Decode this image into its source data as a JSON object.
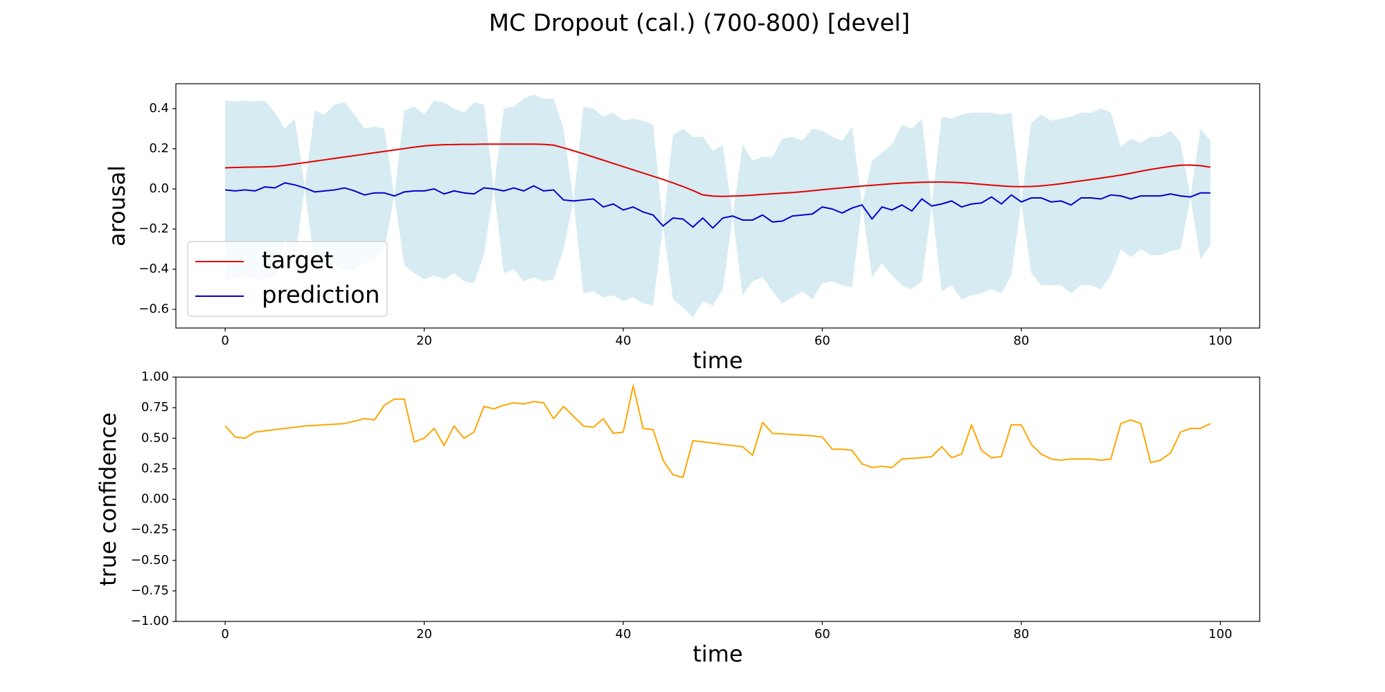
{
  "title": "MC Dropout (cal.) (700-800) [devel]",
  "chart_data": [
    {
      "type": "line",
      "xlabel": "time",
      "ylabel": "arousal",
      "x": [
        0,
        1,
        2,
        3,
        4,
        5,
        6,
        7,
        8,
        9,
        10,
        11,
        12,
        13,
        14,
        15,
        16,
        17,
        18,
        19,
        20,
        21,
        22,
        23,
        24,
        25,
        26,
        27,
        28,
        29,
        30,
        31,
        32,
        33,
        34,
        35,
        36,
        37,
        38,
        39,
        40,
        41,
        42,
        43,
        44,
        45,
        46,
        47,
        48,
        49,
        50,
        51,
        52,
        53,
        54,
        55,
        56,
        57,
        58,
        59,
        60,
        61,
        62,
        63,
        64,
        65,
        66,
        67,
        68,
        69,
        70,
        71,
        72,
        73,
        74,
        75,
        76,
        77,
        78,
        79,
        80,
        81,
        82,
        83,
        84,
        85,
        86,
        87,
        88,
        89,
        90,
        91,
        92,
        93,
        94,
        95,
        96,
        97,
        98,
        99
      ],
      "series": [
        {
          "name": "target",
          "color": "#e00000",
          "values": [
            0.105,
            0.107,
            0.108,
            0.109,
            0.11,
            0.112,
            0.117,
            0.124,
            0.131,
            0.138,
            0.145,
            0.152,
            0.159,
            0.166,
            0.173,
            0.18,
            0.187,
            0.194,
            0.201,
            0.208,
            0.214,
            0.218,
            0.22,
            0.221,
            0.222,
            0.222,
            0.223,
            0.223,
            0.223,
            0.223,
            0.223,
            0.223,
            0.222,
            0.218,
            0.205,
            0.19,
            0.175,
            0.159,
            0.143,
            0.127,
            0.111,
            0.095,
            0.079,
            0.063,
            0.047,
            0.03,
            0.012,
            -0.008,
            -0.03,
            -0.036,
            -0.037,
            -0.036,
            -0.034,
            -0.031,
            -0.027,
            -0.024,
            -0.021,
            -0.018,
            -0.014,
            -0.009,
            -0.004,
            0.001,
            0.005,
            0.01,
            0.014,
            0.018,
            0.022,
            0.026,
            0.029,
            0.031,
            0.033,
            0.034,
            0.034,
            0.033,
            0.031,
            0.027,
            0.023,
            0.019,
            0.015,
            0.012,
            0.011,
            0.012,
            0.015,
            0.02,
            0.026,
            0.033,
            0.04,
            0.047,
            0.054,
            0.061,
            0.069,
            0.078,
            0.088,
            0.097,
            0.105,
            0.112,
            0.118,
            0.119,
            0.116,
            0.108
          ]
        },
        {
          "name": "prediction",
          "color": "#0000cc",
          "values": [
            -0.005,
            -0.01,
            -0.005,
            -0.01,
            0.01,
            0.005,
            0.03,
            0.02,
            0.005,
            -0.015,
            -0.01,
            -0.005,
            0.005,
            -0.01,
            -0.03,
            -0.02,
            -0.02,
            -0.035,
            -0.015,
            -0.01,
            -0.01,
            0.0,
            -0.025,
            -0.01,
            -0.02,
            -0.025,
            0.005,
            0.0,
            -0.01,
            0.005,
            -0.01,
            0.015,
            -0.01,
            -0.005,
            -0.055,
            -0.06,
            -0.055,
            -0.05,
            -0.09,
            -0.075,
            -0.105,
            -0.09,
            -0.115,
            -0.13,
            -0.185,
            -0.145,
            -0.15,
            -0.19,
            -0.145,
            -0.195,
            -0.145,
            -0.135,
            -0.155,
            -0.155,
            -0.13,
            -0.165,
            -0.16,
            -0.135,
            -0.13,
            -0.125,
            -0.09,
            -0.1,
            -0.12,
            -0.095,
            -0.08,
            -0.15,
            -0.09,
            -0.105,
            -0.08,
            -0.11,
            -0.05,
            -0.085,
            -0.075,
            -0.06,
            -0.09,
            -0.075,
            -0.07,
            -0.04,
            -0.075,
            -0.03,
            -0.065,
            -0.045,
            -0.045,
            -0.065,
            -0.06,
            -0.08,
            -0.045,
            -0.045,
            -0.05,
            -0.03,
            -0.035,
            -0.05,
            -0.035,
            -0.035,
            -0.035,
            -0.025,
            -0.035,
            -0.04,
            -0.02,
            -0.02
          ]
        }
      ],
      "band": {
        "color": "#add8e6",
        "upper": [
          0.44,
          0.435,
          0.44,
          0.435,
          0.44,
          0.38,
          0.3,
          0.35,
          0.005,
          0.39,
          0.37,
          0.42,
          0.43,
          0.37,
          0.3,
          0.31,
          0.3,
          -0.035,
          0.39,
          0.41,
          0.37,
          0.44,
          0.43,
          0.4,
          0.38,
          0.43,
          0.42,
          0.0,
          0.4,
          0.41,
          0.45,
          0.47,
          0.45,
          0.45,
          0.3,
          -0.06,
          0.41,
          0.4,
          0.36,
          0.38,
          0.34,
          0.35,
          0.34,
          0.32,
          -0.185,
          0.27,
          0.3,
          0.26,
          0.26,
          0.19,
          0.22,
          -0.135,
          0.22,
          0.14,
          0.16,
          0.16,
          0.25,
          0.26,
          0.24,
          0.3,
          0.29,
          0.26,
          0.24,
          0.31,
          -0.08,
          0.14,
          0.18,
          0.22,
          0.32,
          0.3,
          0.35,
          -0.085,
          0.36,
          0.35,
          0.37,
          0.38,
          0.38,
          0.38,
          0.37,
          0.38,
          -0.065,
          0.33,
          0.37,
          0.34,
          0.35,
          0.36,
          0.38,
          0.38,
          0.4,
          0.38,
          0.21,
          0.25,
          0.23,
          0.26,
          0.26,
          0.29,
          0.23,
          -0.04,
          0.3,
          0.24
        ],
        "lower": [
          -0.45,
          -0.45,
          -0.44,
          -0.45,
          -0.45,
          -0.44,
          -0.25,
          -0.35,
          0.005,
          -0.38,
          -0.4,
          -0.38,
          -0.41,
          -0.4,
          -0.37,
          -0.35,
          -0.3,
          -0.035,
          -0.38,
          -0.42,
          -0.45,
          -0.43,
          -0.45,
          -0.42,
          -0.46,
          -0.47,
          -0.33,
          0.0,
          -0.42,
          -0.4,
          -0.46,
          -0.44,
          -0.46,
          -0.45,
          -0.3,
          -0.06,
          -0.52,
          -0.51,
          -0.54,
          -0.53,
          -0.56,
          -0.54,
          -0.57,
          -0.58,
          -0.185,
          -0.55,
          -0.59,
          -0.64,
          -0.56,
          -0.58,
          -0.5,
          -0.135,
          -0.53,
          -0.46,
          -0.44,
          -0.51,
          -0.57,
          -0.54,
          -0.51,
          -0.55,
          -0.47,
          -0.46,
          -0.48,
          -0.49,
          -0.08,
          -0.44,
          -0.37,
          -0.43,
          -0.48,
          -0.5,
          -0.46,
          -0.085,
          -0.51,
          -0.48,
          -0.55,
          -0.53,
          -0.52,
          -0.5,
          -0.52,
          -0.43,
          -0.065,
          -0.42,
          -0.48,
          -0.48,
          -0.48,
          -0.52,
          -0.48,
          -0.48,
          -0.5,
          -0.43,
          -0.3,
          -0.34,
          -0.3,
          -0.33,
          -0.33,
          -0.31,
          -0.3,
          -0.04,
          -0.35,
          -0.28
        ]
      },
      "xlim": [
        -4.95,
        103.95
      ],
      "xticks": [
        0,
        20,
        40,
        60,
        80,
        100
      ],
      "ylim": [
        -0.693,
        0.524
      ],
      "yticks": [
        {
          "value": -0.6,
          "label": "−0.6"
        },
        {
          "value": -0.4,
          "label": "−0.4"
        },
        {
          "value": -0.2,
          "label": "−0.2"
        },
        {
          "value": 0,
          "label": "0.0"
        },
        0.2,
        0.4
      ],
      "legend": "lower left",
      "grid": false
    },
    {
      "type": "line",
      "xlabel": "time",
      "ylabel": "true confidence",
      "x": [
        0,
        1,
        2,
        3,
        4,
        5,
        6,
        7,
        8,
        9,
        10,
        11,
        12,
        13,
        14,
        15,
        16,
        17,
        18,
        19,
        20,
        21,
        22,
        23,
        24,
        25,
        26,
        27,
        28,
        29,
        30,
        31,
        32,
        33,
        34,
        35,
        36,
        37,
        38,
        39,
        40,
        41,
        42,
        43,
        44,
        45,
        46,
        47,
        48,
        49,
        50,
        51,
        52,
        53,
        54,
        55,
        56,
        57,
        58,
        59,
        60,
        61,
        62,
        63,
        64,
        65,
        66,
        67,
        68,
        69,
        70,
        71,
        72,
        73,
        74,
        75,
        76,
        77,
        78,
        79,
        80,
        81,
        82,
        83,
        84,
        85,
        86,
        87,
        88,
        89,
        90,
        91,
        92,
        93,
        94,
        95,
        96,
        97,
        98,
        99
      ],
      "color": "#ffa500",
      "values": [
        0.6,
        0.51,
        0.5,
        0.55,
        0.56,
        0.57,
        0.58,
        0.59,
        0.6,
        0.605,
        0.61,
        0.615,
        0.62,
        0.64,
        0.66,
        0.65,
        0.77,
        0.82,
        0.82,
        0.47,
        0.5,
        0.58,
        0.44,
        0.6,
        0.5,
        0.55,
        0.76,
        0.74,
        0.77,
        0.79,
        0.78,
        0.8,
        0.79,
        0.66,
        0.76,
        0.68,
        0.6,
        0.59,
        0.66,
        0.54,
        0.55,
        0.93,
        0.58,
        0.57,
        0.32,
        0.2,
        0.18,
        0.48,
        0.47,
        0.46,
        0.45,
        0.44,
        0.43,
        0.36,
        0.63,
        0.54,
        0.535,
        0.53,
        0.525,
        0.52,
        0.51,
        0.41,
        0.41,
        0.4,
        0.29,
        0.26,
        0.27,
        0.26,
        0.33,
        0.335,
        0.34,
        0.35,
        0.43,
        0.34,
        0.37,
        0.61,
        0.4,
        0.34,
        0.35,
        0.61,
        0.61,
        0.45,
        0.37,
        0.33,
        0.32,
        0.33,
        0.33,
        0.33,
        0.32,
        0.33,
        0.62,
        0.65,
        0.62,
        0.3,
        0.32,
        0.38,
        0.55,
        0.58,
        0.58,
        0.62
      ],
      "xlim": [
        -4.95,
        103.95
      ],
      "xticks": [
        0,
        20,
        40,
        60,
        80,
        100
      ],
      "ylim": [
        -1,
        1
      ],
      "yticks": [
        {
          "value": -1,
          "label": "−1.00"
        },
        {
          "value": -0.75,
          "label": "−0.75"
        },
        {
          "value": -0.5,
          "label": "−0.50"
        },
        {
          "value": -0.25,
          "label": "−0.25"
        },
        {
          "value": 0,
          "label": "0.00"
        },
        {
          "value": 0.25,
          "label": "0.25"
        },
        {
          "value": 0.5,
          "label": "0.50"
        },
        {
          "value": 0.75,
          "label": "0.75"
        },
        {
          "value": 1,
          "label": "1.00"
        }
      ],
      "grid": false
    }
  ]
}
